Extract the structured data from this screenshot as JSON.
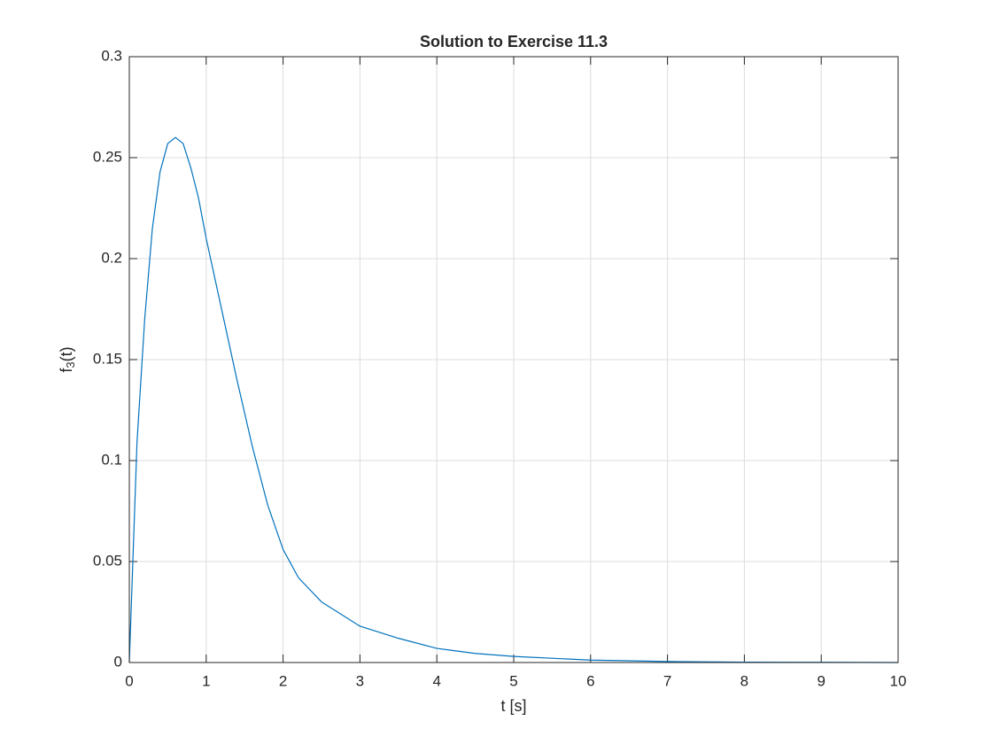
{
  "chart_data": {
    "type": "line",
    "title": "Solution to Exercise 11.3",
    "x_label": "t [s]",
    "y_label": [
      "f",
      "3",
      "(t)"
    ],
    "x": [
      0,
      0.1,
      0.2,
      0.3,
      0.4,
      0.5,
      0.6,
      0.7,
      0.8,
      0.9,
      1.0,
      1.2,
      1.4,
      1.6,
      1.8,
      2.0,
      2.2,
      2.5,
      3.0,
      3.5,
      4.0,
      4.5,
      5.0,
      6.0,
      7.0,
      8.0,
      9.0,
      10.0
    ],
    "values": [
      0,
      0.109,
      0.17,
      0.215,
      0.243,
      0.257,
      0.26,
      0.257,
      0.245,
      0.23,
      0.21,
      0.175,
      0.14,
      0.107,
      0.078,
      0.056,
      0.042,
      0.03,
      0.018,
      0.012,
      0.007,
      0.0045,
      0.003,
      0.0012,
      0.0005,
      0.0002,
      0.0001,
      0
    ],
    "color": "#0072bd",
    "xlim": [
      0,
      10
    ],
    "xticks": [
      0,
      1,
      2,
      3,
      4,
      5,
      6,
      7,
      8,
      9,
      10
    ],
    "ylim": [
      0,
      0.3
    ],
    "yticks": [
      0,
      0.05,
      0.1,
      0.15,
      0.2,
      0.25,
      0.3
    ],
    "grid": true
  }
}
